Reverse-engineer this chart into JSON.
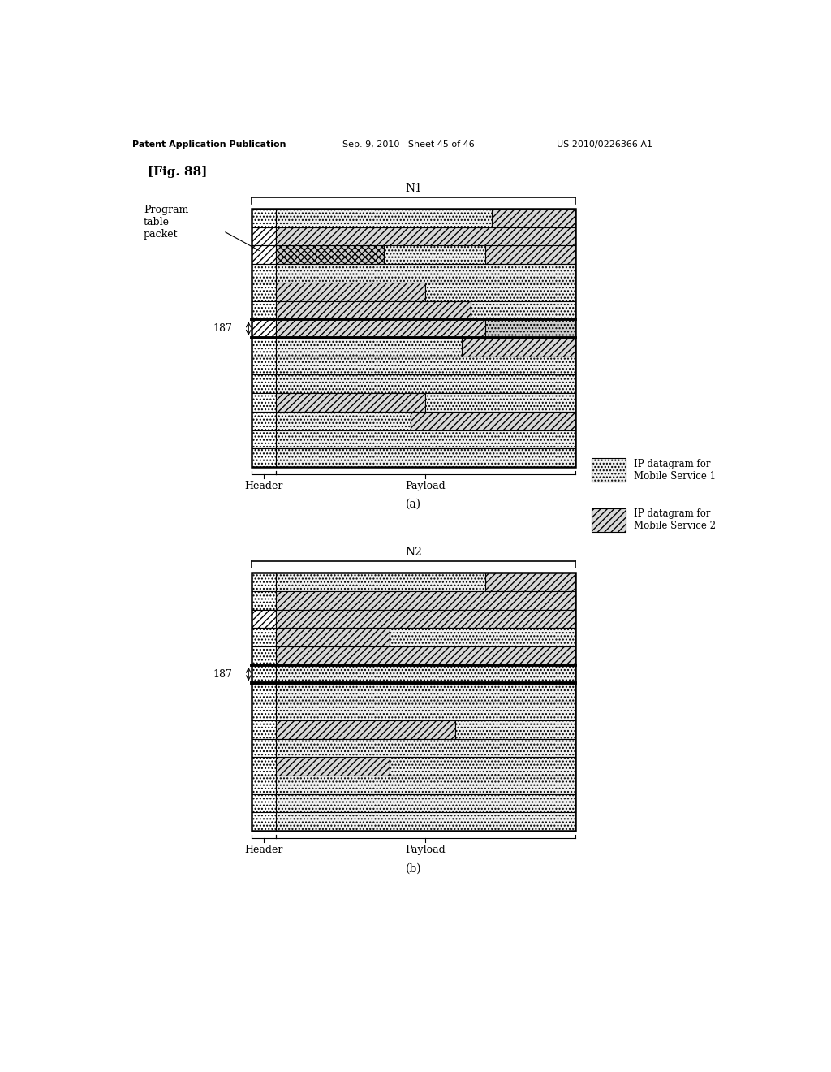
{
  "title_left": "Patent Application Publication",
  "title_mid": "Sep. 9, 2010   Sheet 45 of 46",
  "title_right": "US 2010/0226366 A1",
  "fig_label": "[Fig. 88]",
  "diagram_a_label": "N1",
  "diagram_b_label": "N2",
  "caption_a": "(a)",
  "caption_b": "(b)",
  "label_187": "187",
  "label_header": "Header",
  "label_payload": "Payload",
  "label_program": "Program\ntable\npacket",
  "legend_1_text": "IP datagram for\nMobile Service 1",
  "legend_2_text": "IP datagram for\nMobile Service 2",
  "bg_color": "#ffffff",
  "line_color": "#000000"
}
